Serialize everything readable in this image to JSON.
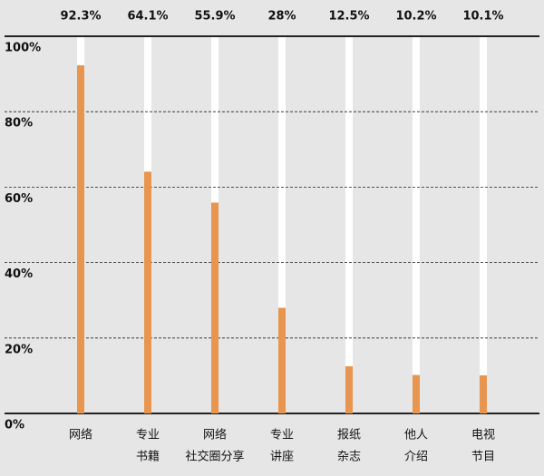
{
  "chart_data": {
    "type": "bar",
    "categories": [
      [
        "网络"
      ],
      [
        "专业",
        "书籍"
      ],
      [
        "网络",
        "社交圈分享"
      ],
      [
        "专业",
        "讲座"
      ],
      [
        "报纸",
        "杂志"
      ],
      [
        "他人",
        "介绍"
      ],
      [
        "电视",
        "节目"
      ]
    ],
    "values": [
      92.3,
      64.1,
      55.9,
      28,
      12.5,
      10.2,
      10.1
    ],
    "value_labels": [
      "92.3%",
      "64.1%",
      "55.9%",
      "28%",
      "12.5%",
      "10.2%",
      "10.1%"
    ],
    "color": "#e8964f",
    "ylim": [
      0,
      100
    ],
    "yticks": [
      {
        "value": 0,
        "label": "0%"
      },
      {
        "value": 20,
        "label": "20%"
      },
      {
        "value": 40,
        "label": "40%"
      },
      {
        "value": 60,
        "label": "60%"
      },
      {
        "value": 80,
        "label": "80%"
      },
      {
        "value": 100,
        "label": "100%"
      }
    ],
    "grid": true
  }
}
